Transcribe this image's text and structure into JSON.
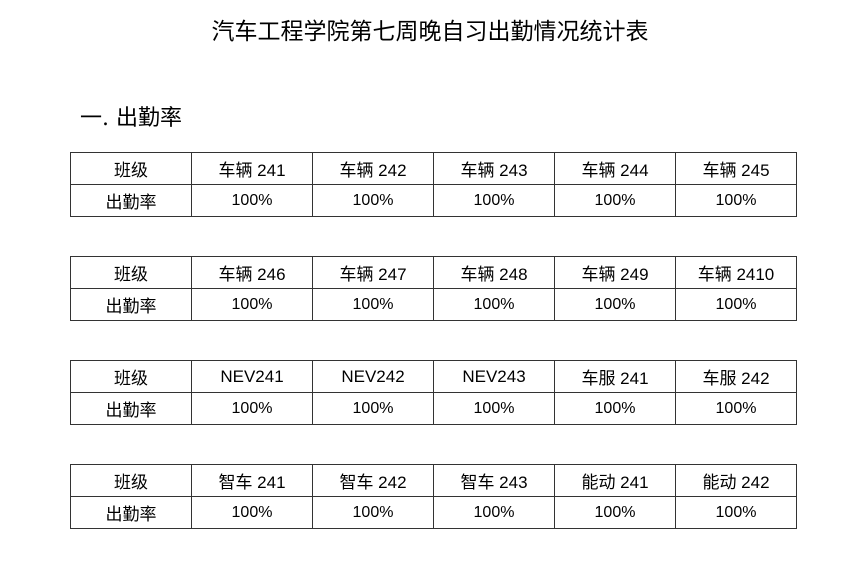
{
  "title": "汽车工程学院第七周晚自习出勤情况统计表",
  "section_heading": "一.  出勤率",
  "row_labels": {
    "class": "班级",
    "rate": "出勤率"
  },
  "tables": [
    {
      "classes": [
        "车辆 241",
        "车辆 242",
        "车辆 243",
        "车辆 244",
        "车辆 245"
      ],
      "rates": [
        "100%",
        "100%",
        "100%",
        "100%",
        "100%"
      ]
    },
    {
      "classes": [
        "车辆 246",
        "车辆 247",
        "车辆 248",
        "车辆 249",
        "车辆 2410"
      ],
      "rates": [
        "100%",
        "100%",
        "100%",
        "100%",
        "100%"
      ]
    },
    {
      "classes": [
        "NEV241",
        "NEV242",
        "NEV243",
        "车服 241",
        "车服 242"
      ],
      "rates": [
        "100%",
        "100%",
        "100%",
        "100%",
        "100%"
      ]
    },
    {
      "classes": [
        "智车 241",
        "智车 242",
        "智车 243",
        "能动 241",
        "能动 242"
      ],
      "rates": [
        "100%",
        "100%",
        "100%",
        "100%",
        "100%"
      ]
    }
  ]
}
